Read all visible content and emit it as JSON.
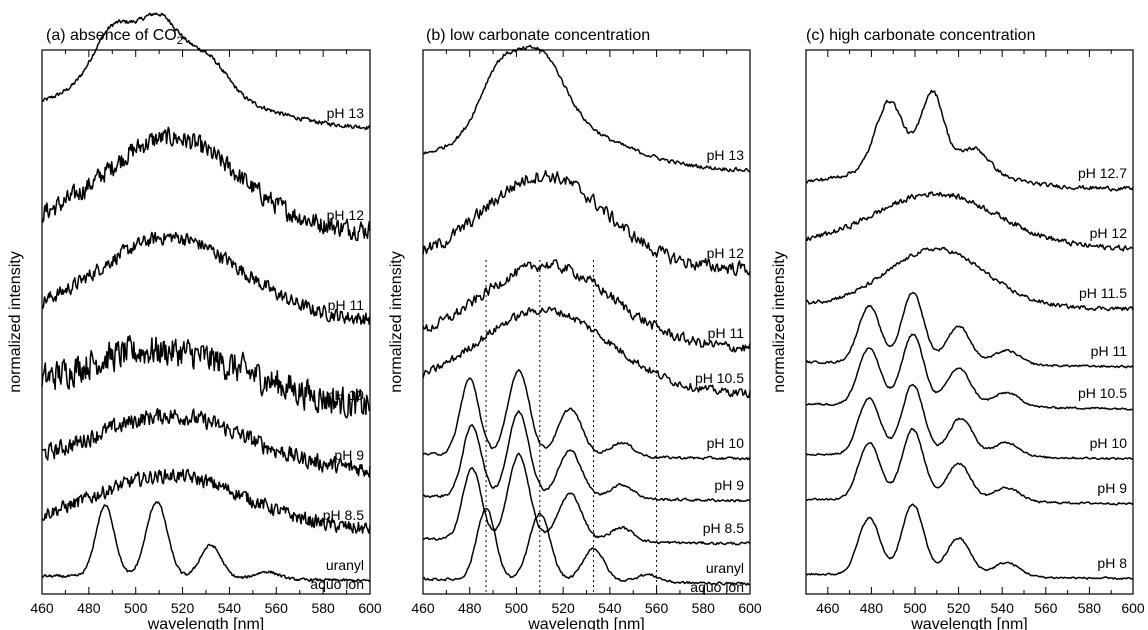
{
  "chart_data": [
    {
      "type": "line",
      "title": "(a) absence of CO",
      "title_subscript": "2",
      "xlabel": "wavelength  [nm]",
      "ylabel": "normalized intensity",
      "xlim": [
        460,
        600
      ],
      "xticks": [
        "460",
        "480",
        "500",
        "520",
        "540",
        "560",
        "580",
        "600"
      ],
      "noise_fine": true,
      "series": [
        {
          "name": "pH 13",
          "offset": 470,
          "noise": 0.03,
          "peaks": [
            [
              490,
              0.5,
              8
            ],
            [
              510,
              0.6,
              9
            ],
            [
              531,
              0.3,
              8
            ]
          ],
          "broad": [
            [
              505,
              0.55,
              35
            ]
          ]
        },
        {
          "name": "pH 12",
          "offset": 368,
          "noise": 0.14,
          "peaks": [],
          "broad": [
            [
              515,
              0.95,
              28
            ]
          ]
        },
        {
          "name": "pH 11",
          "offset": 278,
          "noise": 0.1,
          "peaks": [],
          "broad": [
            [
              515,
              0.85,
              30
            ]
          ]
        },
        {
          "name": "pH 10",
          "offset": 188,
          "noise": 0.22,
          "peaks": [],
          "broad": [
            [
              510,
              0.6,
              40
            ]
          ]
        },
        {
          "name": "pH 9",
          "offset": 128,
          "noise": 0.12,
          "peaks": [],
          "broad": [
            [
              515,
              0.55,
              32
            ]
          ]
        },
        {
          "name": "pH 8.5",
          "offset": 68,
          "noise": 0.1,
          "peaks": [],
          "broad": [
            [
              515,
              0.55,
              32
            ]
          ]
        },
        {
          "name": "uranyl",
          "name2": "aquo ion",
          "offset": 18,
          "noise": 0.02,
          "peaks": [
            [
              487,
              0.75,
              4
            ],
            [
              509,
              0.8,
              4.5
            ],
            [
              532,
              0.35,
              4.5
            ],
            [
              556,
              0.08,
              5
            ]
          ],
          "broad": []
        }
      ],
      "guides": []
    },
    {
      "type": "line",
      "title": "(b) low carbonate concentration",
      "title_subscript": "",
      "xlabel": "wavelength [nm]",
      "ylabel": "normalized intensity",
      "xlim": [
        460,
        600
      ],
      "xticks": [
        "460",
        "480",
        "500",
        "520",
        "540",
        "560",
        "580",
        "600"
      ],
      "noise_fine": false,
      "series": [
        {
          "name": "pH 13",
          "offset": 428,
          "noise": 0.03,
          "peaks": [
            [
              492,
              0.55,
              8
            ],
            [
              510,
              0.7,
              10
            ]
          ],
          "broad": [
            [
              510,
              0.5,
              30
            ]
          ]
        },
        {
          "name": "pH 12",
          "offset": 330,
          "noise": 0.1,
          "peaks": [],
          "broad": [
            [
              512,
              0.95,
              26
            ]
          ]
        },
        {
          "name": "pH 11",
          "offset": 250,
          "noise": 0.08,
          "peaks": [],
          "broad": [
            [
              513,
              0.85,
              28
            ]
          ]
        },
        {
          "name": "pH 10.5",
          "offset": 205,
          "noise": 0.06,
          "peaks": [],
          "broad": [
            [
              512,
              0.85,
              28
            ]
          ]
        },
        {
          "name": "pH 10",
          "offset": 140,
          "noise": 0.02,
          "peaks": [
            [
              480,
              0.8,
              4
            ],
            [
              501,
              0.9,
              4.5
            ],
            [
              523,
              0.5,
              5
            ],
            [
              545,
              0.15,
              5
            ]
          ],
          "broad": []
        },
        {
          "name": "pH 9",
          "offset": 98,
          "noise": 0.02,
          "peaks": [
            [
              481,
              0.75,
              4
            ],
            [
              501,
              0.9,
              4.5
            ],
            [
              523,
              0.5,
              5
            ],
            [
              545,
              0.15,
              5
            ]
          ],
          "broad": []
        },
        {
          "name": "pH 8.5",
          "offset": 55,
          "noise": 0.02,
          "peaks": [
            [
              481,
              0.75,
              4
            ],
            [
              501,
              0.9,
              4.5
            ],
            [
              523,
              0.5,
              5
            ],
            [
              545,
              0.15,
              5
            ]
          ],
          "broad": []
        },
        {
          "name": "uranyl",
          "name2": "aquo ion",
          "offset": 15,
          "noise": 0.02,
          "peaks": [
            [
              487,
              0.75,
              4
            ],
            [
              510,
              0.7,
              4.5
            ],
            [
              533,
              0.35,
              4.5
            ],
            [
              556,
              0.08,
              5
            ]
          ],
          "broad": []
        }
      ],
      "guides": [
        487,
        510,
        533,
        560
      ]
    },
    {
      "type": "line",
      "title": "(c) high carbonate concentration",
      "title_subscript": "",
      "xlabel": "wavelength [nm]",
      "ylabel": "normalized intensity",
      "xlim": [
        450,
        600
      ],
      "xticks": [
        "460",
        "480",
        "500",
        "520",
        "540",
        "560",
        "580",
        "600"
      ],
      "noise_fine": false,
      "series": [
        {
          "name": "pH 12.7",
          "offset": 410,
          "noise": 0.03,
          "peaks": [
            [
              488,
              0.65,
              6
            ],
            [
              508,
              0.7,
              5
            ],
            [
              528,
              0.2,
              6
            ]
          ],
          "broad": [
            [
              505,
              0.3,
              25
            ]
          ]
        },
        {
          "name": "pH 12",
          "offset": 350,
          "noise": 0.04,
          "peaks": [],
          "broad": [
            [
              510,
              0.55,
              28
            ]
          ]
        },
        {
          "name": "pH 11.5",
          "offset": 290,
          "noise": 0.03,
          "peaks": [],
          "broad": [
            [
              510,
              0.6,
              22
            ]
          ]
        },
        {
          "name": "pH 11",
          "offset": 232,
          "noise": 0.015,
          "peaks": [
            [
              479,
              0.6,
              5
            ],
            [
              499,
              0.75,
              5
            ],
            [
              520,
              0.4,
              5.5
            ],
            [
              542,
              0.15,
              6
            ]
          ],
          "broad": []
        },
        {
          "name": "pH 10.5",
          "offset": 190,
          "noise": 0.015,
          "peaks": [
            [
              479,
              0.6,
              5
            ],
            [
              499,
              0.75,
              5
            ],
            [
              520,
              0.4,
              5.5
            ],
            [
              542,
              0.15,
              6
            ]
          ],
          "broad": []
        },
        {
          "name": "pH 10",
          "offset": 140,
          "noise": 0.015,
          "peaks": [
            [
              479,
              0.6,
              5
            ],
            [
              499,
              0.75,
              5
            ],
            [
              521,
              0.4,
              5.5
            ],
            [
              542,
              0.15,
              6
            ]
          ],
          "broad": []
        },
        {
          "name": "pH 9",
          "offset": 95,
          "noise": 0.015,
          "peaks": [
            [
              479,
              0.6,
              5
            ],
            [
              499,
              0.75,
              5
            ],
            [
              520,
              0.4,
              5.5
            ],
            [
              542,
              0.15,
              6
            ]
          ],
          "broad": []
        },
        {
          "name": "pH 8",
          "offset": 20,
          "noise": 0.015,
          "peaks": [
            [
              479,
              0.6,
              5
            ],
            [
              499,
              0.75,
              5
            ],
            [
              520,
              0.4,
              5.5
            ],
            [
              542,
              0.15,
              6
            ]
          ],
          "broad": []
        }
      ],
      "guides": []
    }
  ]
}
